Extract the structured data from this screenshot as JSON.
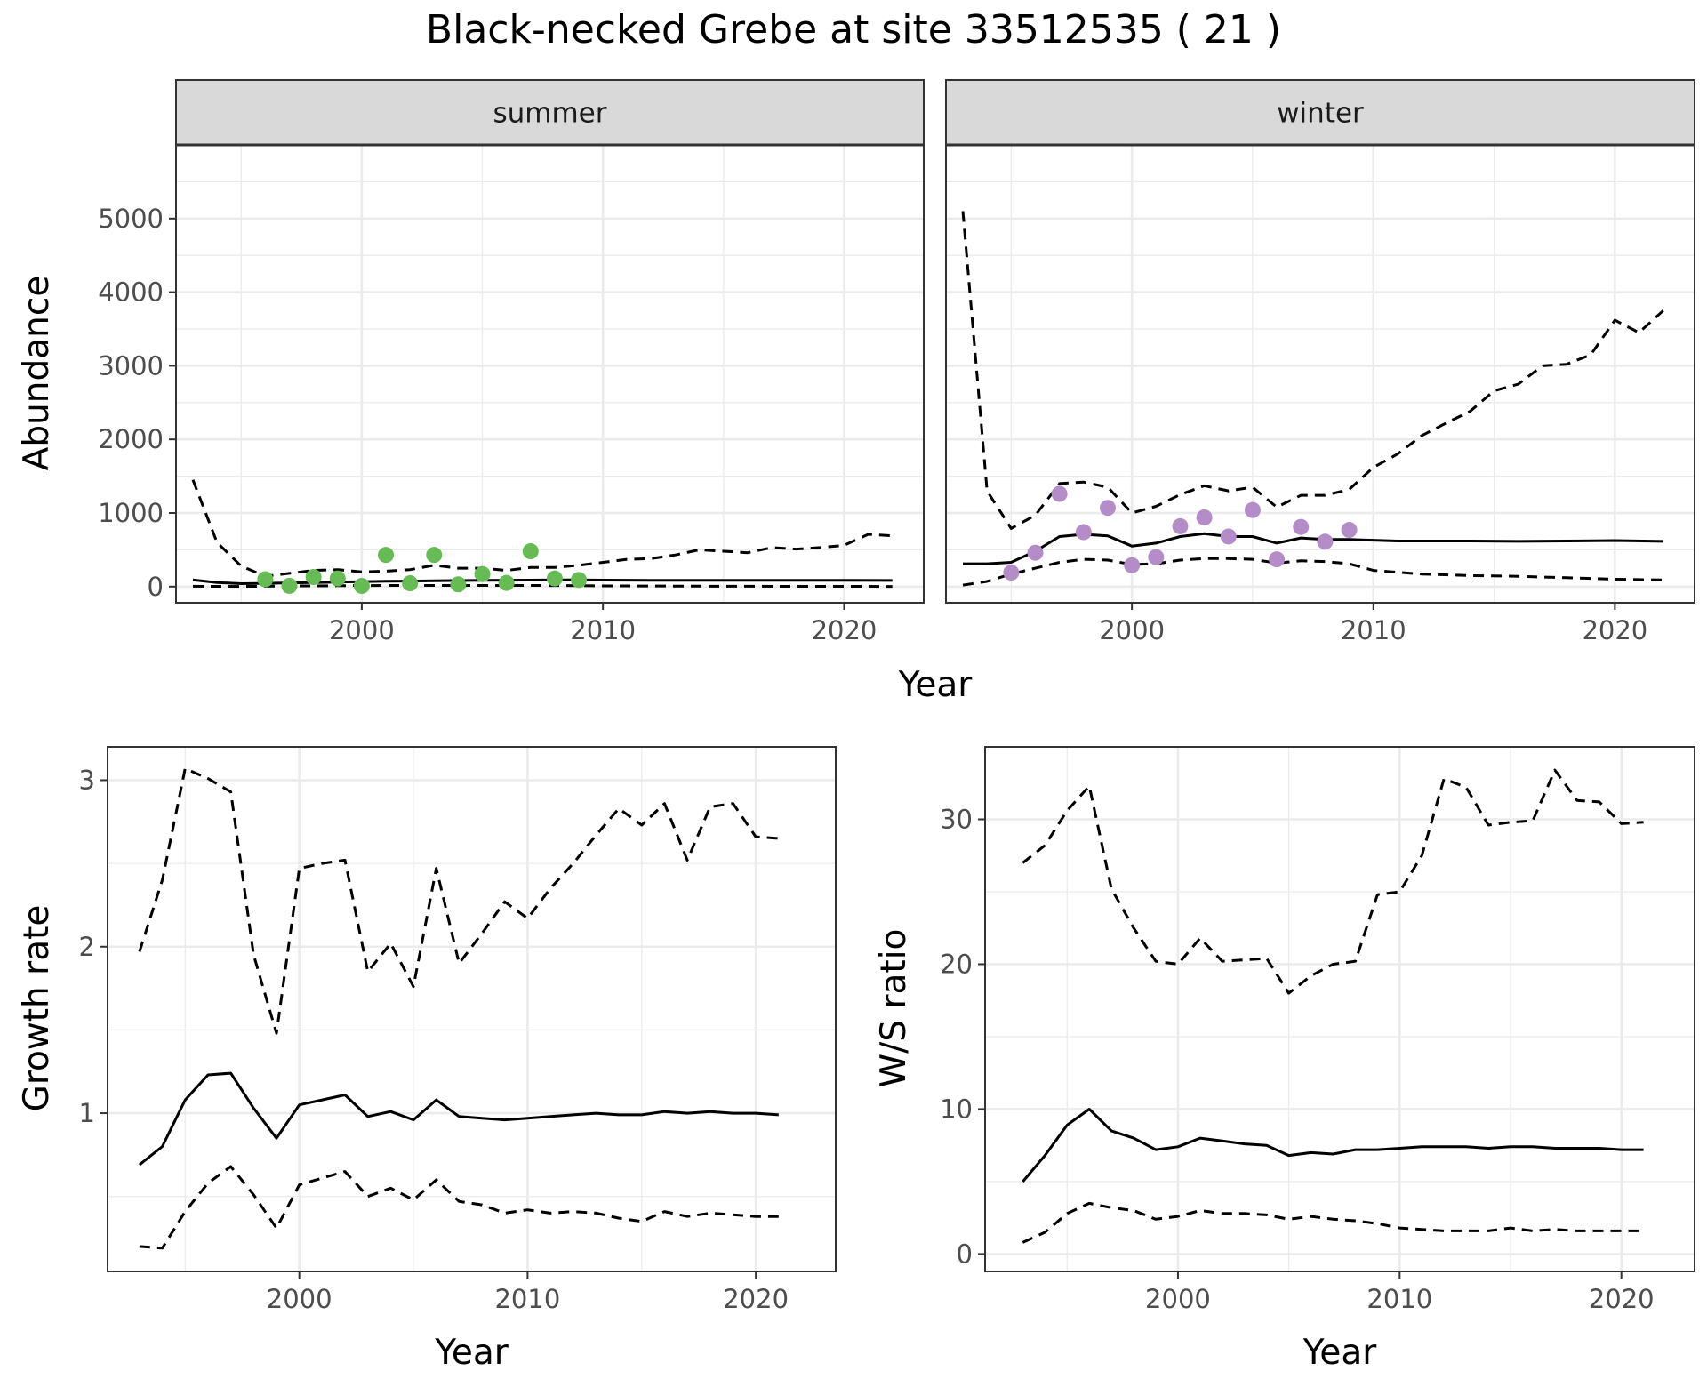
{
  "figure_title": "Black-necked Grebe at site 33512535 ( 21 )",
  "colors": {
    "summer_points": "#66bb55",
    "winter_points": "#b48cc8",
    "lines": "#000000",
    "strip_fill": "#d9d9d9",
    "grid": "#ebebeb"
  },
  "chart_data": [
    {
      "type": "line",
      "facet": "summer",
      "xlabel": "Year",
      "ylabel": "Abundance",
      "xlim": [
        1992.3,
        2023.3
      ],
      "ylim": [
        -220,
        6000
      ],
      "x_ticks": [
        2000,
        2010,
        2020
      ],
      "y_ticks": [
        0,
        1000,
        2000,
        3000,
        4000,
        5000
      ],
      "series": [
        {
          "style": "solid",
          "x": [
            1993,
            1994,
            1995,
            1996,
            1997,
            1998,
            1999,
            2000,
            2001,
            2002,
            2003,
            2004,
            2005,
            2006,
            2007,
            2008,
            2009,
            2010,
            2012,
            2014,
            2016,
            2018,
            2020,
            2022
          ],
          "y": [
            90,
            55,
            40,
            45,
            50,
            55,
            62,
            68,
            72,
            75,
            80,
            82,
            85,
            87,
            88,
            90,
            90,
            88,
            86,
            85,
            85,
            84,
            84,
            83
          ]
        },
        {
          "style": "dashed",
          "x": [
            1993,
            1994,
            1995,
            1996,
            1997,
            1998,
            1999,
            2000,
            2001,
            2002,
            2003,
            2004,
            2005,
            2006,
            2007,
            2008,
            2009,
            2010,
            2011,
            2012,
            2013,
            2014,
            2015,
            2016,
            2017,
            2018,
            2019,
            2020,
            2021,
            2022
          ],
          "y": [
            1450,
            600,
            280,
            140,
            180,
            220,
            230,
            200,
            210,
            230,
            290,
            250,
            250,
            220,
            260,
            260,
            290,
            330,
            370,
            380,
            430,
            500,
            480,
            460,
            530,
            510,
            530,
            560,
            710,
            690
          ]
        },
        {
          "style": "dashed",
          "x": [
            1993,
            1994,
            1995,
            1996,
            1997,
            1998,
            1999,
            2000,
            2001,
            2002,
            2003,
            2004,
            2005,
            2006,
            2007,
            2008,
            2009,
            2010,
            2012,
            2014,
            2016,
            2018,
            2020,
            2022
          ],
          "y": [
            5,
            3,
            2,
            5,
            8,
            10,
            12,
            14,
            15,
            15,
            16,
            16,
            16,
            15,
            15,
            14,
            13,
            10,
            8,
            6,
            5,
            4,
            3,
            2
          ]
        }
      ],
      "points": {
        "x": [
          1996,
          1997,
          1998,
          1999,
          2000,
          2001,
          2002,
          2003,
          2004,
          2005,
          2006,
          2007,
          2008,
          2009
        ],
        "y": [
          100,
          10,
          130,
          110,
          10,
          430,
          45,
          430,
          30,
          170,
          50,
          480,
          110,
          90
        ]
      }
    },
    {
      "type": "line",
      "facet": "winter",
      "xlabel": "Year",
      "ylabel": "",
      "xlim": [
        1992.3,
        2023.3
      ],
      "ylim": [
        -220,
        6000
      ],
      "x_ticks": [
        2000,
        2010,
        2020
      ],
      "y_ticks": [
        0,
        1000,
        2000,
        3000,
        4000,
        5000
      ],
      "series": [
        {
          "style": "solid",
          "x": [
            1993,
            1994,
            1995,
            1996,
            1997,
            1998,
            1999,
            2000,
            2001,
            2002,
            2003,
            2004,
            2005,
            2006,
            2007,
            2008,
            2009,
            2010,
            2011,
            2012,
            2014,
            2016,
            2018,
            2020,
            2022
          ],
          "y": [
            310,
            310,
            330,
            480,
            680,
            710,
            690,
            550,
            590,
            680,
            720,
            680,
            680,
            590,
            660,
            640,
            640,
            630,
            620,
            620,
            620,
            615,
            620,
            625,
            615
          ]
        },
        {
          "style": "dashed",
          "x": [
            1993,
            1994,
            1995,
            1996,
            1997,
            1998,
            1999,
            2000,
            2001,
            2002,
            2003,
            2004,
            2005,
            2006,
            2007,
            2008,
            2009,
            2010,
            2011,
            2012,
            2013,
            2014,
            2015,
            2016,
            2017,
            2018,
            2019,
            2020,
            2021,
            2022
          ],
          "y": [
            5100,
            1300,
            790,
            970,
            1400,
            1420,
            1350,
            1000,
            1090,
            1250,
            1370,
            1300,
            1350,
            1080,
            1240,
            1240,
            1320,
            1620,
            1800,
            2050,
            2220,
            2380,
            2660,
            2750,
            3000,
            3020,
            3150,
            3620,
            3450,
            3750
          ]
        },
        {
          "style": "dashed",
          "x": [
            1993,
            1994,
            1995,
            1996,
            1997,
            1998,
            1999,
            2000,
            2001,
            2002,
            2003,
            2004,
            2005,
            2006,
            2007,
            2008,
            2009,
            2010,
            2012,
            2014,
            2016,
            2018,
            2020,
            2022
          ],
          "y": [
            20,
            70,
            170,
            250,
            330,
            370,
            360,
            300,
            310,
            360,
            380,
            380,
            370,
            320,
            350,
            340,
            310,
            220,
            170,
            150,
            140,
            120,
            100,
            90
          ]
        }
      ],
      "points": {
        "x": [
          1995,
          1996,
          1997,
          1998,
          1999,
          2000,
          2001,
          2002,
          2003,
          2004,
          2005,
          2006,
          2007,
          2008,
          2009
        ],
        "y": [
          190,
          460,
          1260,
          740,
          1070,
          290,
          400,
          820,
          940,
          680,
          1040,
          370,
          810,
          610,
          770
        ]
      }
    },
    {
      "type": "line",
      "xlabel": "Year",
      "ylabel": "Growth rate",
      "xlim": [
        1991.6,
        2023.5
      ],
      "ylim": [
        0.05,
        3.2
      ],
      "x_ticks": [
        2000,
        2010,
        2020
      ],
      "y_ticks": [
        1,
        2,
        3
      ],
      "series": [
        {
          "style": "solid",
          "x": [
            1993,
            1994,
            1995,
            1996,
            1997,
            1998,
            1999,
            2000,
            2001,
            2002,
            2003,
            2004,
            2005,
            2006,
            2007,
            2008,
            2009,
            2010,
            2011,
            2012,
            2013,
            2014,
            2015,
            2016,
            2017,
            2018,
            2019,
            2020,
            2021
          ],
          "y": [
            0.69,
            0.8,
            1.08,
            1.23,
            1.24,
            1.03,
            0.85,
            1.05,
            1.08,
            1.11,
            0.98,
            1.01,
            0.96,
            1.08,
            0.98,
            0.97,
            0.96,
            0.97,
            0.98,
            0.99,
            1.0,
            0.99,
            0.99,
            1.01,
            1.0,
            1.01,
            1.0,
            1.0,
            0.99
          ]
        },
        {
          "style": "dashed",
          "x": [
            1993,
            1994,
            1995,
            1996,
            1997,
            1998,
            1999,
            2000,
            2001,
            2002,
            2003,
            2004,
            2005,
            2006,
            2007,
            2008,
            2009,
            2010,
            2011,
            2012,
            2013,
            2014,
            2015,
            2016,
            2017,
            2018,
            2019,
            2020,
            2021
          ],
          "y": [
            1.97,
            2.4,
            3.07,
            3.01,
            2.93,
            1.95,
            1.48,
            2.47,
            2.5,
            2.52,
            1.85,
            2.02,
            1.76,
            2.47,
            1.9,
            2.08,
            2.27,
            2.17,
            2.35,
            2.5,
            2.67,
            2.83,
            2.73,
            2.86,
            2.52,
            2.84,
            2.86,
            2.66,
            2.65
          ]
        },
        {
          "style": "dashed",
          "x": [
            1993,
            1994,
            1995,
            1996,
            1997,
            1998,
            1999,
            2000,
            2001,
            2002,
            2003,
            2004,
            2005,
            2006,
            2007,
            2008,
            2009,
            2010,
            2011,
            2012,
            2013,
            2014,
            2015,
            2016,
            2017,
            2018,
            2019,
            2020,
            2021
          ],
          "y": [
            0.2,
            0.19,
            0.41,
            0.58,
            0.68,
            0.51,
            0.31,
            0.57,
            0.61,
            0.65,
            0.5,
            0.55,
            0.48,
            0.6,
            0.47,
            0.45,
            0.4,
            0.42,
            0.4,
            0.41,
            0.4,
            0.37,
            0.35,
            0.41,
            0.38,
            0.4,
            0.39,
            0.38,
            0.38
          ]
        }
      ]
    },
    {
      "type": "line",
      "xlabel": "Year",
      "ylabel": "W/S ratio",
      "xlim": [
        1991.3,
        2023.3
      ],
      "ylim": [
        -1.2,
        35
      ],
      "x_ticks": [
        2000,
        2010,
        2020
      ],
      "y_ticks": [
        0,
        10,
        20,
        30
      ],
      "series": [
        {
          "style": "solid",
          "x": [
            1993,
            1994,
            1995,
            1996,
            1997,
            1998,
            1999,
            2000,
            2001,
            2002,
            2003,
            2004,
            2005,
            2006,
            2007,
            2008,
            2009,
            2010,
            2011,
            2012,
            2013,
            2014,
            2015,
            2016,
            2017,
            2018,
            2019,
            2020,
            2021
          ],
          "y": [
            5.0,
            6.8,
            8.9,
            10.0,
            8.5,
            8.0,
            7.2,
            7.4,
            8.0,
            7.8,
            7.6,
            7.5,
            6.8,
            7.0,
            6.9,
            7.2,
            7.2,
            7.3,
            7.4,
            7.4,
            7.4,
            7.3,
            7.4,
            7.4,
            7.3,
            7.3,
            7.3,
            7.2,
            7.2
          ]
        },
        {
          "style": "dashed",
          "x": [
            1993,
            1994,
            1995,
            1996,
            1997,
            1998,
            1999,
            2000,
            2001,
            2002,
            2003,
            2004,
            2005,
            2006,
            2007,
            2008,
            2009,
            2010,
            2011,
            2012,
            2013,
            2014,
            2015,
            2016,
            2017,
            2018,
            2019,
            2020,
            2021
          ],
          "y": [
            27.0,
            28.2,
            30.6,
            32.3,
            25.2,
            22.5,
            20.2,
            20.0,
            21.8,
            20.2,
            20.3,
            20.4,
            18.0,
            19.2,
            20.0,
            20.2,
            24.8,
            25.0,
            27.5,
            32.8,
            32.2,
            29.6,
            29.8,
            29.9,
            33.4,
            31.3,
            31.2,
            29.7,
            29.8
          ]
        },
        {
          "style": "dashed",
          "x": [
            1993,
            1994,
            1995,
            1996,
            1997,
            1998,
            1999,
            2000,
            2001,
            2002,
            2003,
            2004,
            2005,
            2006,
            2007,
            2008,
            2009,
            2010,
            2011,
            2012,
            2013,
            2014,
            2015,
            2016,
            2017,
            2018,
            2019,
            2020,
            2021
          ],
          "y": [
            0.8,
            1.5,
            2.8,
            3.5,
            3.2,
            3.0,
            2.4,
            2.6,
            3.0,
            2.8,
            2.8,
            2.7,
            2.4,
            2.6,
            2.4,
            2.3,
            2.1,
            1.8,
            1.7,
            1.6,
            1.6,
            1.6,
            1.8,
            1.6,
            1.7,
            1.6,
            1.6,
            1.6,
            1.6
          ]
        }
      ]
    }
  ]
}
